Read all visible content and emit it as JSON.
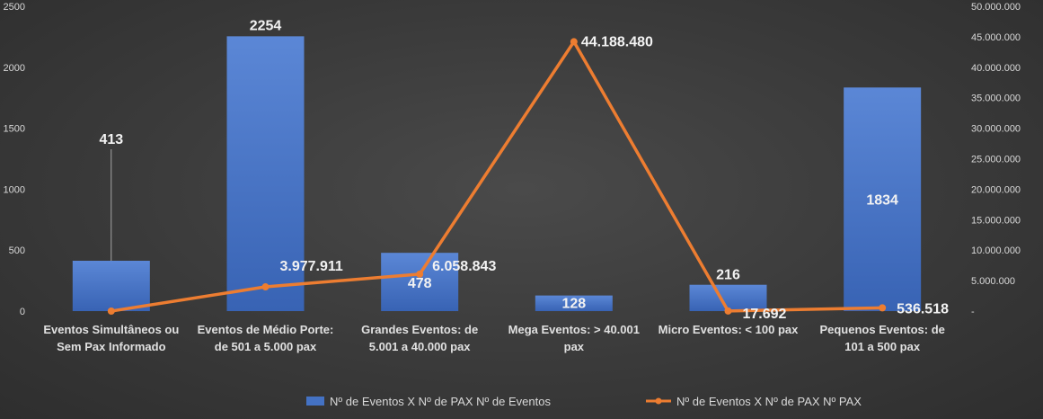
{
  "chart_data": {
    "type": "bar+line",
    "categories": [
      [
        "Eventos Simultâneos ou",
        "Sem Pax Informado"
      ],
      [
        "Eventos de Médio Porte:",
        "de 501 a 5.000 pax"
      ],
      [
        "Grandes Eventos: de",
        "5.001 a 40.000 pax"
      ],
      [
        "Mega Eventos: > 40.001",
        "pax"
      ],
      [
        "Micro Eventos: < 100 pax"
      ],
      [
        "Pequenos Eventos: de",
        "101 a 500 pax"
      ]
    ],
    "series": [
      {
        "name": "Nº de Eventos X Nº de PAX Nº de Eventos",
        "type": "bar",
        "axis": "left",
        "color": "#4472c4",
        "values": [
          413,
          2254,
          478,
          128,
          216,
          1834
        ],
        "labels": [
          "413",
          "2254",
          "478",
          "128",
          "216",
          "1834"
        ]
      },
      {
        "name": "Nº de Eventos X Nº de PAX Nº PAX",
        "type": "line",
        "axis": "right",
        "color": "#ed7d31",
        "values": [
          0,
          3977911,
          6058843,
          44188480,
          17692,
          536518
        ],
        "labels": [
          "",
          "3.977.911",
          "6.058.843",
          "44.188.480",
          "17.692",
          "536.518"
        ]
      }
    ],
    "left_axis": {
      "ylim": [
        0,
        2500
      ],
      "ticks": [
        0,
        500,
        1000,
        1500,
        2000,
        2500
      ],
      "tick_labels": [
        "0",
        "500",
        "1000",
        "1500",
        "2000",
        "2500"
      ]
    },
    "right_axis": {
      "ylim": [
        0,
        50000000
      ],
      "ticks": [
        0,
        5000000,
        10000000,
        15000000,
        20000000,
        25000000,
        30000000,
        35000000,
        40000000,
        45000000,
        50000000
      ],
      "tick_labels": [
        "-",
        "5.000.000",
        "10.000.000",
        "15.000.000",
        "20.000.000",
        "25.000.000",
        "30.000.000",
        "35.000.000",
        "40.000.000",
        "45.000.000",
        "50.000.000"
      ]
    },
    "grid": false,
    "legend": "bottom",
    "title": "",
    "xlabel": "",
    "ylabel": ""
  }
}
